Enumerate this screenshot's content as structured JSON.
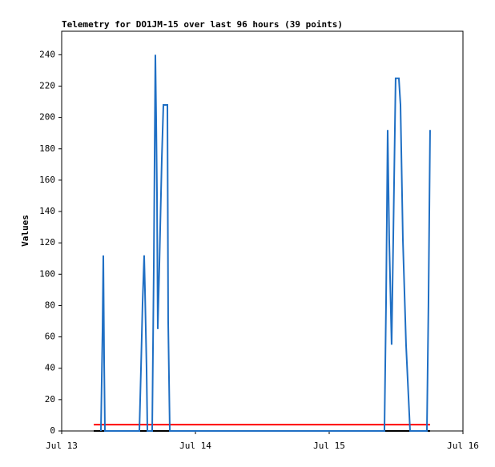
{
  "chart_data": {
    "type": "line",
    "title": "Telemetry for DO1JM-15 over last 96 hours (39 points)",
    "ylabel": "Values",
    "xlim": [
      0,
      72
    ],
    "xticks": [
      {
        "value": 0,
        "label": "Jul 13"
      },
      {
        "value": 24,
        "label": "Jul 14"
      },
      {
        "value": 48,
        "label": "Jul 15"
      },
      {
        "value": 72,
        "label": "Jul 16"
      }
    ],
    "ylim": [
      0,
      255
    ],
    "yticks": [
      0,
      20,
      40,
      60,
      80,
      100,
      120,
      140,
      160,
      180,
      200,
      220,
      240
    ],
    "grid": false,
    "series": [
      {
        "color": "#000000",
        "x": [
          5.75,
          66.1
        ],
        "values": [
          0,
          0
        ]
      },
      {
        "color": "#ff0000",
        "x": [
          5.75,
          66.1
        ],
        "values": [
          4,
          4
        ]
      },
      {
        "color": "#1f6fc4",
        "x": [
          7.04,
          7.33,
          7.47,
          7.62,
          7.76,
          13.94,
          14.23,
          14.51,
          14.8,
          14.94,
          15.23,
          15.38,
          16.24,
          16.53,
          16.81,
          16.96,
          17.1,
          17.24,
          17.53,
          17.96,
          18.25,
          18.97,
          19.11,
          19.4,
          57.91,
          58.2,
          58.49,
          58.77,
          59.2,
          59.49,
          59.92,
          60.5,
          60.79,
          61.22,
          61.79,
          62.51,
          65.53,
          65.81,
          66.1
        ],
        "values": [
          0,
          64,
          112,
          45,
          0,
          0,
          40,
          81,
          112,
          91,
          40,
          0,
          0,
          106,
          240,
          198,
          152,
          65,
          106,
          173,
          208,
          208,
          70,
          0,
          0,
          81,
          192,
          122,
          55,
          122,
          225,
          225,
          208,
          122,
          55,
          0,
          0,
          81,
          192
        ]
      }
    ]
  }
}
